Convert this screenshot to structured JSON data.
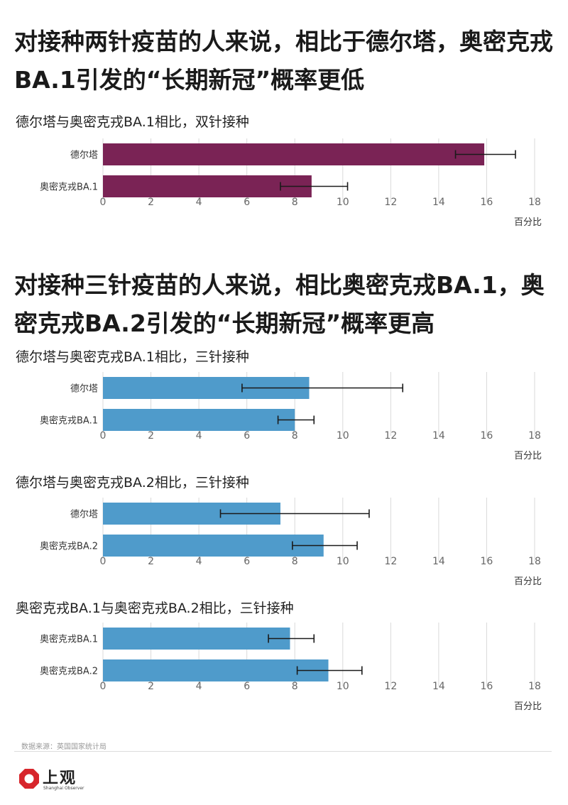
{
  "headlines": [
    "对接种两针疫苗的人来说，相比于德尔塔，奥密克戎BA.1引发的“长期新冠”概率更低",
    "对接种三针疫苗的人来说，相比奥密克戎BA.1，奥密克戎BA.2引发的“长期新冠”概率更高"
  ],
  "colors": {
    "two_dose": "#7a2355",
    "three_dose": "#4f9bcb",
    "error_bar": "#1a1a1a",
    "grid": "#d9d9d9"
  },
  "chart_data": [
    {
      "type": "bar",
      "orientation": "horizontal",
      "title": "德尔塔与奥密克戎BA.1相比，双针接种",
      "categories": [
        "德尔塔",
        "奥密克戎BA.1"
      ],
      "values": [
        15.9,
        8.7
      ],
      "error_low": [
        14.7,
        7.4
      ],
      "error_high": [
        17.2,
        10.2
      ],
      "xlabel": "百分比",
      "xlim": [
        0,
        18
      ],
      "xticks": [
        0,
        2,
        4,
        6,
        8,
        10,
        12,
        14,
        16,
        18
      ],
      "color": "#7a2355"
    },
    {
      "type": "bar",
      "orientation": "horizontal",
      "title": "德尔塔与奥密克戎BA.1相比，三针接种",
      "categories": [
        "德尔塔",
        "奥密克戎BA.1"
      ],
      "values": [
        8.6,
        8.0
      ],
      "error_low": [
        5.8,
        7.3
      ],
      "error_high": [
        12.5,
        8.8
      ],
      "xlabel": "百分比",
      "xlim": [
        0,
        18
      ],
      "xticks": [
        0,
        2,
        4,
        6,
        8,
        10,
        12,
        14,
        16,
        18
      ],
      "color": "#4f9bcb"
    },
    {
      "type": "bar",
      "orientation": "horizontal",
      "title": "德尔塔与奥密克戎BA.2相比，三针接种",
      "categories": [
        "德尔塔",
        "奥密克戎BA.2"
      ],
      "values": [
        7.4,
        9.2
      ],
      "error_low": [
        4.9,
        7.9
      ],
      "error_high": [
        11.1,
        10.6
      ],
      "xlabel": "百分比",
      "xlim": [
        0,
        18
      ],
      "xticks": [
        0,
        2,
        4,
        6,
        8,
        10,
        12,
        14,
        16,
        18
      ],
      "color": "#4f9bcb"
    },
    {
      "type": "bar",
      "orientation": "horizontal",
      "title": "奥密克戎BA.1与奥密克戎BA.2相比，三针接种",
      "categories": [
        "奥密克戎BA.1",
        "奥密克戎BA.2"
      ],
      "values": [
        7.8,
        9.4
      ],
      "error_low": [
        6.9,
        8.1
      ],
      "error_high": [
        8.8,
        10.8
      ],
      "xlabel": "百分比",
      "xlim": [
        0,
        18
      ],
      "xticks": [
        0,
        2,
        4,
        6,
        8,
        10,
        12,
        14,
        16,
        18
      ],
      "color": "#4f9bcb"
    }
  ],
  "source": "数据来源：英国国家统计局",
  "logo": {
    "name_cn": "上观",
    "name_en": "Shanghai Observer",
    "icon": "shanghai-observer-logo-icon"
  }
}
